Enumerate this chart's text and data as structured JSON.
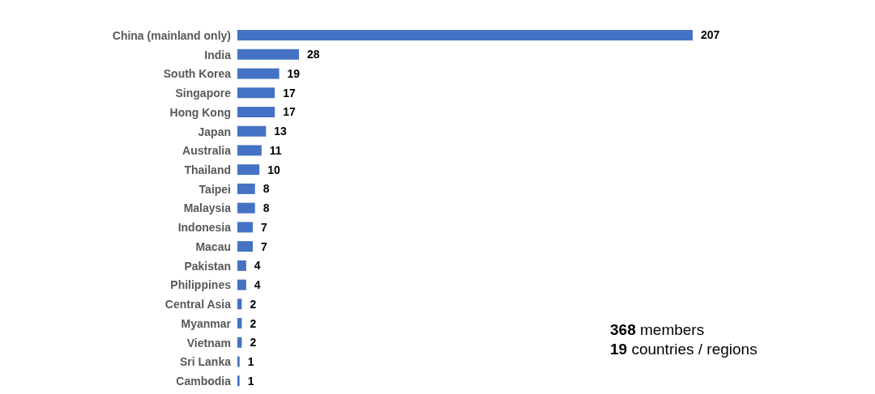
{
  "chart_data": {
    "type": "bar",
    "orientation": "horizontal",
    "categories": [
      "China (mainland only)",
      "India",
      "South Korea",
      "Singapore",
      "Hong Kong",
      "Japan",
      "Australia",
      "Thailand",
      "Taipei",
      "Malaysia",
      "Indonesia",
      "Macau",
      "Pakistan",
      "Philippines",
      "Central Asia",
      "Myanmar",
      "Vietnam",
      "Sri Lanka",
      "Cambodia"
    ],
    "values": [
      207,
      28,
      19,
      17,
      17,
      13,
      11,
      10,
      8,
      8,
      7,
      7,
      4,
      4,
      2,
      2,
      2,
      1,
      1
    ],
    "color": "#4472c4",
    "data_labels": true,
    "annotations": [
      "368 members",
      "19 countries / regions"
    ]
  }
}
